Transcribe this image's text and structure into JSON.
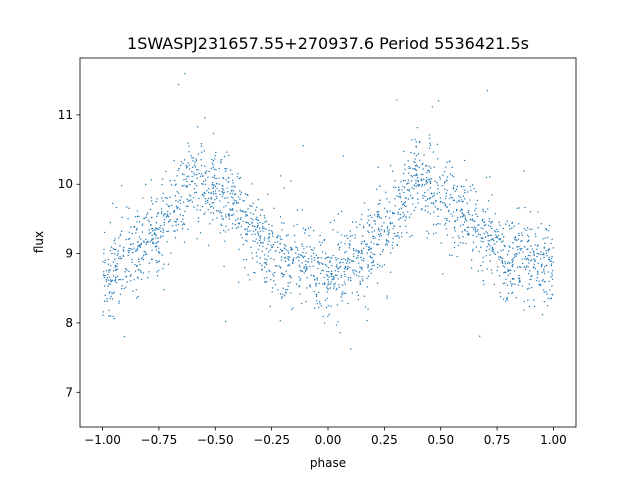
{
  "chart_data": {
    "type": "scatter",
    "title": "1SWASPJ231657.55+270937.6 Period 5536421.5s",
    "xlabel": "phase",
    "ylabel": "flux",
    "xlim": [
      -1.1,
      1.1
    ],
    "ylim": [
      6.5,
      11.82
    ],
    "xticks": [
      -1.0,
      -0.75,
      -0.5,
      -0.25,
      0.0,
      0.25,
      0.5,
      0.75,
      1.0
    ],
    "xtick_labels": [
      "−1.00",
      "−0.75",
      "−0.50",
      "−0.25",
      "0.00",
      "0.25",
      "0.50",
      "0.75",
      "1.00"
    ],
    "yticks": [
      7,
      8,
      9,
      10,
      11
    ],
    "ytick_labels": [
      "7",
      "8",
      "9",
      "10",
      "11"
    ],
    "grid": false,
    "point_color": "#1f77b4",
    "series": [
      {
        "x_range": [
          -1.0,
          1.0
        ],
        "profile_x": [
          0.0,
          0.05,
          0.1,
          0.15,
          0.2,
          0.25,
          0.3,
          0.35,
          0.4,
          0.45,
          0.5,
          0.55,
          0.6,
          0.65,
          0.7,
          0.75,
          0.8,
          0.85,
          0.9,
          0.95,
          1.0
        ],
        "profile_mean_flux": [
          8.7,
          8.75,
          8.85,
          9.0,
          9.1,
          9.3,
          9.55,
          9.85,
          10.1,
          10.0,
          9.9,
          9.75,
          9.6,
          9.4,
          9.2,
          9.05,
          8.95,
          8.9,
          8.85,
          8.8,
          8.7
        ],
        "scatter_sigma": 0.3
      }
    ]
  }
}
